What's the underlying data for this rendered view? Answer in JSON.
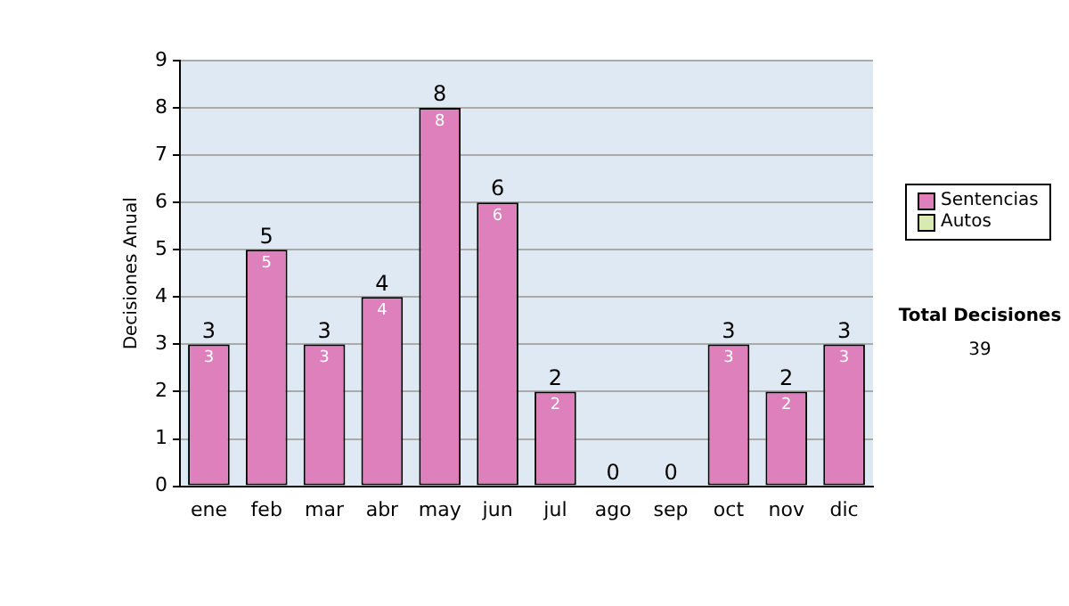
{
  "chart_data": {
    "type": "bar",
    "ylabel": "Decisiones Anual",
    "categories": [
      "ene",
      "feb",
      "mar",
      "abr",
      "may",
      "jun",
      "jul",
      "ago",
      "sep",
      "oct",
      "nov",
      "dic"
    ],
    "stacked": true,
    "series": [
      {
        "name": "Sentencias",
        "color": "#dd80bc",
        "values": [
          3,
          5,
          3,
          4,
          8,
          6,
          2,
          0,
          0,
          3,
          2,
          3
        ],
        "value_labels": [
          "3",
          "5",
          "3",
          "4",
          "8",
          "6",
          "2",
          null,
          null,
          "3",
          "2",
          "3"
        ]
      },
      {
        "name": "Autos",
        "color": "#d9eab0",
        "values": [
          0,
          0,
          0,
          0,
          0,
          0,
          0,
          0,
          0,
          0,
          0,
          0
        ]
      }
    ],
    "totals": [
      "3",
      "5",
      "3",
      "4",
      "8",
      "6",
      "2",
      "0",
      "0",
      "3",
      "2",
      "3"
    ],
    "ylim": [
      0,
      9
    ],
    "yticks": [
      0,
      1,
      2,
      3,
      4,
      5,
      6,
      7,
      8,
      9
    ],
    "grid": "y",
    "legend": "right",
    "annotations": [
      "Total Decisiones",
      "39"
    ]
  }
}
